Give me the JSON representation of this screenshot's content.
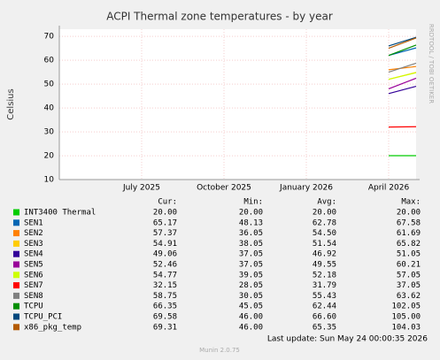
{
  "chart_data": {
    "type": "line",
    "title": "ACPI Thermal zone temperatures - by year",
    "y_label": "Celsius",
    "side_text": "RRDTOOL / TOBI OETIKER",
    "x": [
      "2026-04",
      "2026-05"
    ],
    "xlim": [
      "2025-04",
      "2026-05"
    ],
    "xticks": [
      {
        "value": "2025-07",
        "label": "July 2025"
      },
      {
        "value": "2025-10",
        "label": "October 2025"
      },
      {
        "value": "2026-01",
        "label": "January 2026"
      },
      {
        "value": "2026-04",
        "label": "April 2026"
      }
    ],
    "ylim": [
      10,
      73
    ],
    "yticks": [
      10,
      20,
      30,
      40,
      50,
      60,
      70
    ],
    "grid": true,
    "series": [
      {
        "name": "INT3400 Thermal",
        "color": "#00cc00",
        "values": [
          20,
          20
        ]
      },
      {
        "name": "SEN1",
        "color": "#0066b3",
        "values": [
          62,
          65.17
        ]
      },
      {
        "name": "SEN2",
        "color": "#ff8000",
        "values": [
          56,
          57.37
        ]
      },
      {
        "name": "SEN3",
        "color": "#ffcc00",
        "values": [
          52,
          54.91
        ]
      },
      {
        "name": "SEN4",
        "color": "#330099",
        "values": [
          46,
          49.06
        ]
      },
      {
        "name": "SEN5",
        "color": "#990099",
        "values": [
          48,
          52.46
        ]
      },
      {
        "name": "SEN6",
        "color": "#ccff00",
        "values": [
          52,
          54.77
        ]
      },
      {
        "name": "SEN7",
        "color": "#ff0000",
        "values": [
          32,
          32.15
        ]
      },
      {
        "name": "SEN8",
        "color": "#808080",
        "values": [
          55,
          58.75
        ]
      },
      {
        "name": "TCPU",
        "color": "#008f00",
        "values": [
          62,
          66.35
        ]
      },
      {
        "name": "TCPU_PCI",
        "color": "#00487d",
        "values": [
          66,
          69.58
        ]
      },
      {
        "name": "x86_pkg_temp",
        "color": "#b35a00",
        "values": [
          65,
          69.31
        ]
      }
    ],
    "stats": {
      "columns": [
        "Cur:",
        "Min:",
        "Avg:",
        "Max:"
      ],
      "rows": [
        [
          "20.00",
          "20.00",
          "20.00",
          "20.00"
        ],
        [
          "65.17",
          "48.13",
          "62.78",
          "67.58"
        ],
        [
          "57.37",
          "36.05",
          "54.50",
          "61.69"
        ],
        [
          "54.91",
          "38.05",
          "51.54",
          "65.82"
        ],
        [
          "49.06",
          "37.05",
          "46.92",
          "51.05"
        ],
        [
          "52.46",
          "37.05",
          "49.55",
          "60.21"
        ],
        [
          "54.77",
          "39.05",
          "52.18",
          "57.05"
        ],
        [
          "32.15",
          "28.05",
          "31.79",
          "37.05"
        ],
        [
          "58.75",
          "30.05",
          "55.43",
          "63.62"
        ],
        [
          "66.35",
          "45.05",
          "62.44",
          "102.05"
        ],
        [
          "69.58",
          "46.00",
          "66.60",
          "105.00"
        ],
        [
          "69.31",
          "46.00",
          "65.35",
          "104.03"
        ]
      ]
    },
    "last_update": "Last update: Sun May 24 00:00:35 2026",
    "footer": "Munin 2.0.75"
  }
}
